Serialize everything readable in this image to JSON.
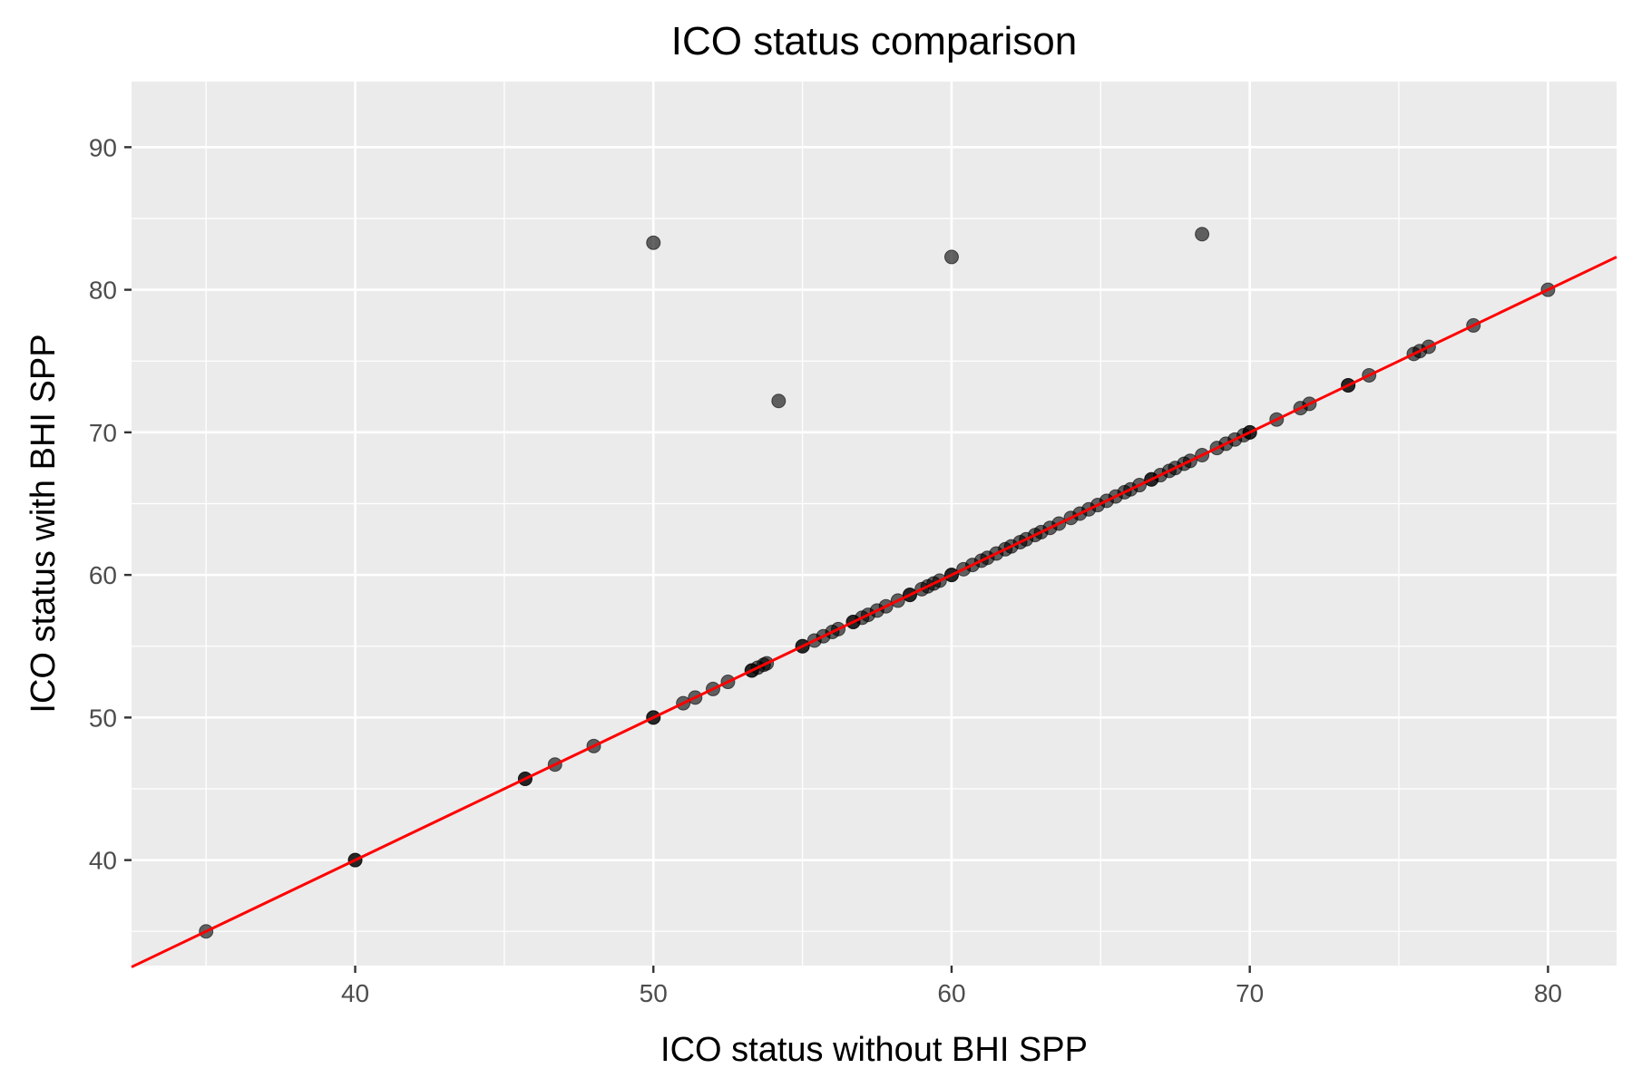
{
  "chart_data": {
    "type": "scatter",
    "title": "ICO status comparison",
    "xlabel": "ICO status without BHI SPP",
    "ylabel": "ICO status with BHI SPP",
    "xlim": [
      32.5,
      82.3
    ],
    "ylim": [
      32.6,
      94.6
    ],
    "x_ticks": [
      40,
      50,
      60,
      70,
      80
    ],
    "y_ticks": [
      40,
      50,
      60,
      70,
      80,
      90
    ],
    "x_tick_labels": [
      "40",
      "50",
      "60",
      "70",
      "80"
    ],
    "y_tick_labels": [
      "40",
      "50",
      "60",
      "70",
      "80",
      "90"
    ],
    "grid": true,
    "panel_color": "#ebebeb",
    "point_color": "#000000",
    "point_alpha": 0.6,
    "line_color": "#ff0000",
    "reference_line": {
      "slope": 1,
      "intercept": 0
    },
    "points": [
      [
        35,
        35
      ],
      [
        40,
        40
      ],
      [
        40,
        40
      ],
      [
        45.7,
        45.7
      ],
      [
        45.7,
        45.7
      ],
      [
        46.7,
        46.7
      ],
      [
        48,
        48
      ],
      [
        50,
        50
      ],
      [
        50,
        50
      ],
      [
        50,
        83.3
      ],
      [
        51,
        51
      ],
      [
        51.4,
        51.4
      ],
      [
        52,
        52
      ],
      [
        52.5,
        52.5
      ],
      [
        53.3,
        53.3
      ],
      [
        53.3,
        53.3
      ],
      [
        53.5,
        53.5
      ],
      [
        53.7,
        53.7
      ],
      [
        53.8,
        53.8
      ],
      [
        54.2,
        72.2
      ],
      [
        55,
        55
      ],
      [
        55,
        55
      ],
      [
        55.4,
        55.4
      ],
      [
        55.7,
        55.7
      ],
      [
        56,
        56
      ],
      [
        56.2,
        56.2
      ],
      [
        56.7,
        56.7
      ],
      [
        56.7,
        56.7
      ],
      [
        57,
        57
      ],
      [
        57.2,
        57.2
      ],
      [
        57.5,
        57.5
      ],
      [
        57.8,
        57.8
      ],
      [
        58.2,
        58.2
      ],
      [
        58.6,
        58.6
      ],
      [
        58.6,
        58.6
      ],
      [
        59,
        59
      ],
      [
        59.2,
        59.2
      ],
      [
        59.4,
        59.4
      ],
      [
        59.6,
        59.6
      ],
      [
        60,
        60
      ],
      [
        60,
        60
      ],
      [
        60,
        82.3
      ],
      [
        60.4,
        60.4
      ],
      [
        60.7,
        60.7
      ],
      [
        61,
        61
      ],
      [
        61.2,
        61.2
      ],
      [
        61.5,
        61.5
      ],
      [
        61.8,
        61.8
      ],
      [
        62,
        62
      ],
      [
        62.3,
        62.3
      ],
      [
        62.5,
        62.5
      ],
      [
        62.8,
        62.8
      ],
      [
        63,
        63
      ],
      [
        63.3,
        63.3
      ],
      [
        63.6,
        63.6
      ],
      [
        64,
        64
      ],
      [
        64.3,
        64.3
      ],
      [
        64.6,
        64.6
      ],
      [
        64.9,
        64.9
      ],
      [
        65.2,
        65.2
      ],
      [
        65.5,
        65.5
      ],
      [
        65.8,
        65.8
      ],
      [
        66,
        66
      ],
      [
        66.3,
        66.3
      ],
      [
        66.7,
        66.7
      ],
      [
        66.7,
        66.7
      ],
      [
        67,
        67
      ],
      [
        67.3,
        67.3
      ],
      [
        67.5,
        67.5
      ],
      [
        67.8,
        67.8
      ],
      [
        68,
        68
      ],
      [
        68.4,
        68.4
      ],
      [
        68.4,
        83.9
      ],
      [
        68.9,
        68.9
      ],
      [
        69.2,
        69.2
      ],
      [
        69.5,
        69.5
      ],
      [
        69.8,
        69.8
      ],
      [
        70,
        70
      ],
      [
        70,
        70
      ],
      [
        70.9,
        70.9
      ],
      [
        71.7,
        71.7
      ],
      [
        72,
        72
      ],
      [
        73.3,
        73.3
      ],
      [
        73.3,
        73.3
      ],
      [
        74,
        74
      ],
      [
        75.5,
        75.5
      ],
      [
        75.7,
        75.7
      ],
      [
        76,
        76
      ],
      [
        77.5,
        77.5
      ],
      [
        80,
        80
      ]
    ]
  }
}
